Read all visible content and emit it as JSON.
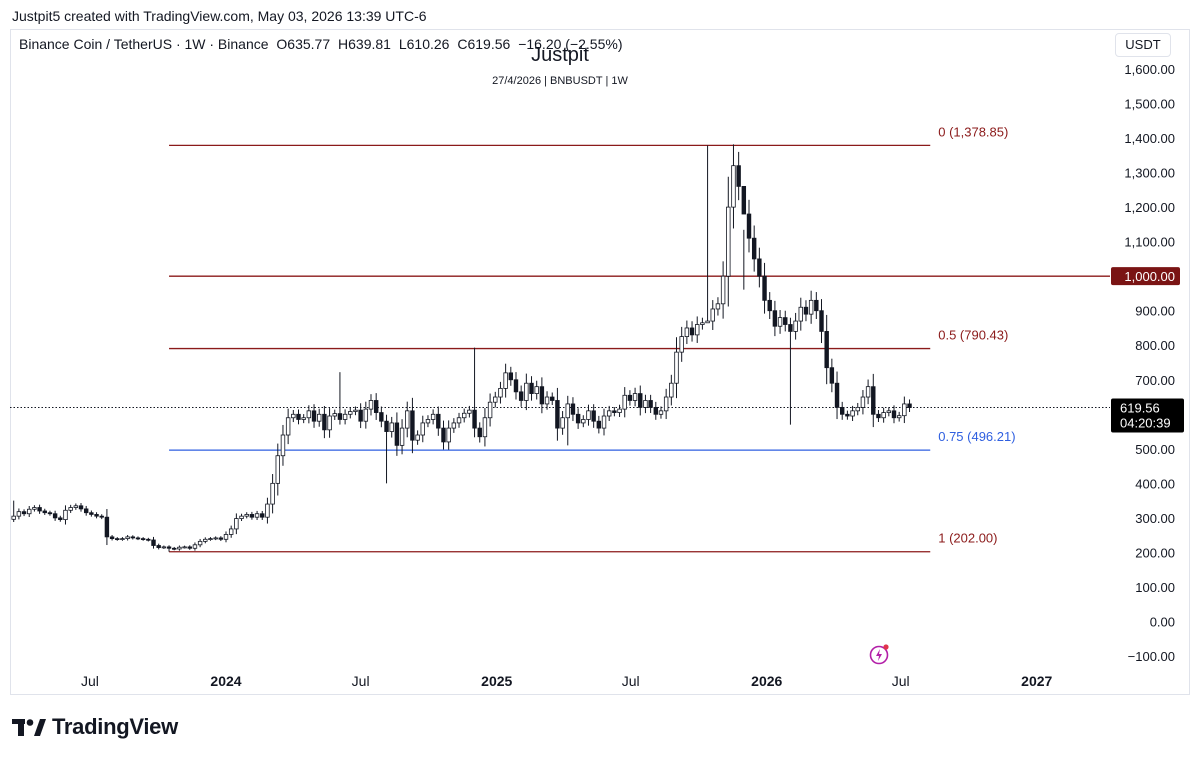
{
  "caption": "Justpit5 created with TradingView.com, May 03, 2026 13:39 UTC-6",
  "legend": {
    "symbol": "Binance Coin / TetherUS · 1W · Binance",
    "open": "O635.77",
    "high": "H639.81",
    "low": "L610.26",
    "close": "C619.56",
    "change": "−16.20 (−2.55%)"
  },
  "watermark": {
    "title": "Justpit",
    "subtitle": "27/4/2026 | BNBUSDT | 1W"
  },
  "price_axis": {
    "unit": "USDT",
    "current_price": "619.56",
    "countdown": "04:20:39",
    "marked_level": "1,000.00"
  },
  "brand": "TradingView",
  "colors": {
    "fib_red": "#8b1a1a",
    "fib_blue": "#2f5fe0",
    "candle": "#131722",
    "marker_bg": "#7a1414",
    "price_bg": "#000000"
  },
  "icons": [
    "tradingview-logo-icon",
    "lightning-icon"
  ],
  "chart_data": {
    "type": "candlestick",
    "title": "Binance Coin / TetherUS · 1W · Binance",
    "ylim": [
      -100,
      1600
    ],
    "y_ticks": [
      "1,600.00",
      "1,500.00",
      "1,400.00",
      "1,300.00",
      "1,200.00",
      "1,100.00",
      "1,000.00",
      "900.00",
      "800.00",
      "700.00",
      "600.00",
      "500.00",
      "400.00",
      "300.00",
      "200.00",
      "100.00",
      "0.00",
      "−100.00"
    ],
    "y_tick_values": [
      1600,
      1500,
      1400,
      1300,
      1200,
      1100,
      1000,
      900,
      800,
      700,
      600,
      500,
      400,
      300,
      200,
      100,
      0,
      -100
    ],
    "x_ticks": [
      {
        "label": "Jul",
        "date": "2023-07-01"
      },
      {
        "label": "2024",
        "date": "2024-01-01"
      },
      {
        "label": "Jul",
        "date": "2024-07-01"
      },
      {
        "label": "2025",
        "date": "2025-01-01"
      },
      {
        "label": "Jul",
        "date": "2025-07-01"
      },
      {
        "label": "2026",
        "date": "2026-01-01"
      },
      {
        "label": "Jul",
        "date": "2026-07-01"
      },
      {
        "label": "2027",
        "date": "2027-01-01"
      }
    ],
    "x_range": [
      "2023-03-15",
      "2027-04-10"
    ],
    "fib_levels": [
      {
        "label": "0 (1,378.85)",
        "value": 1378.85,
        "color": "red"
      },
      {
        "label": "0.5 (790.43)",
        "value": 790.43,
        "color": "red"
      },
      {
        "label": "0.75 (496.21)",
        "value": 496.21,
        "color": "blue"
      },
      {
        "label": "1 (202.00)",
        "value": 202.0,
        "color": "red"
      }
    ],
    "fib_start_date": "2023-10-16",
    "fib_end_date": "2026-08-10",
    "horizontal_line": {
      "value": 1000,
      "start_date": "2023-10-16",
      "end_date": "2027-04-10"
    },
    "last_price_line": 619.56,
    "weekly_closes": {
      "start_date": "2023-03-20",
      "interval_days": 7,
      "close": [
        305,
        318,
        312,
        325,
        330,
        320,
        315,
        312,
        300,
        295,
        322,
        330,
        335,
        326,
        315,
        310,
        305,
        302,
        245,
        240,
        238,
        240,
        245,
        242,
        240,
        238,
        236,
        220,
        214,
        216,
        212,
        210,
        215,
        216,
        212,
        222,
        232,
        238,
        240,
        242,
        238,
        252,
        268,
        298,
        305,
        310,
        302,
        312,
        302,
        340,
        400,
        480,
        540,
        590,
        600,
        585,
        590,
        610,
        580,
        600,
        555,
        595,
        602,
        585,
        600,
        608,
        612,
        580,
        615,
        640,
        605,
        580,
        550,
        575,
        510,
        560,
        610,
        525,
        540,
        575,
        585,
        600,
        560,
        520,
        560,
        575,
        590,
        603,
        612,
        560,
        535,
        590,
        635,
        650,
        675,
        720,
        700,
        665,
        640,
        690,
        660,
        680,
        630,
        650,
        640,
        560,
        590,
        630,
        600,
        575,
        585,
        610,
        580,
        560,
        595,
        610,
        605,
        615,
        655,
        640,
        660,
        620,
        640,
        620,
        600,
        610,
        650,
        690,
        780,
        825,
        850,
        830,
        860,
        865,
        870,
        905,
        920,
        1000,
        1200,
        1320,
        1260,
        1180,
        1110,
        1050,
        1000,
        930,
        900,
        855,
        880,
        860,
        840,
        870,
        910,
        890,
        930,
        900,
        840,
        735,
        690,
        620,
        600,
        595,
        610,
        620,
        650,
        680,
        600,
        590,
        605,
        610,
        590,
        596,
        630,
        619.56
      ],
      "wick_highs": {
        "2023-03-20": 350,
        "2024-06-03": 722,
        "2024-12-02": 793,
        "2025-10-13": 1378.85,
        "2025-12-01": 961
      },
      "wick_lows": {
        "2023-10-16": 202,
        "2024-08-05": 400,
        "2025-04-07": 510,
        "2025-10-13": 870,
        "2026-02-02": 570
      }
    }
  }
}
